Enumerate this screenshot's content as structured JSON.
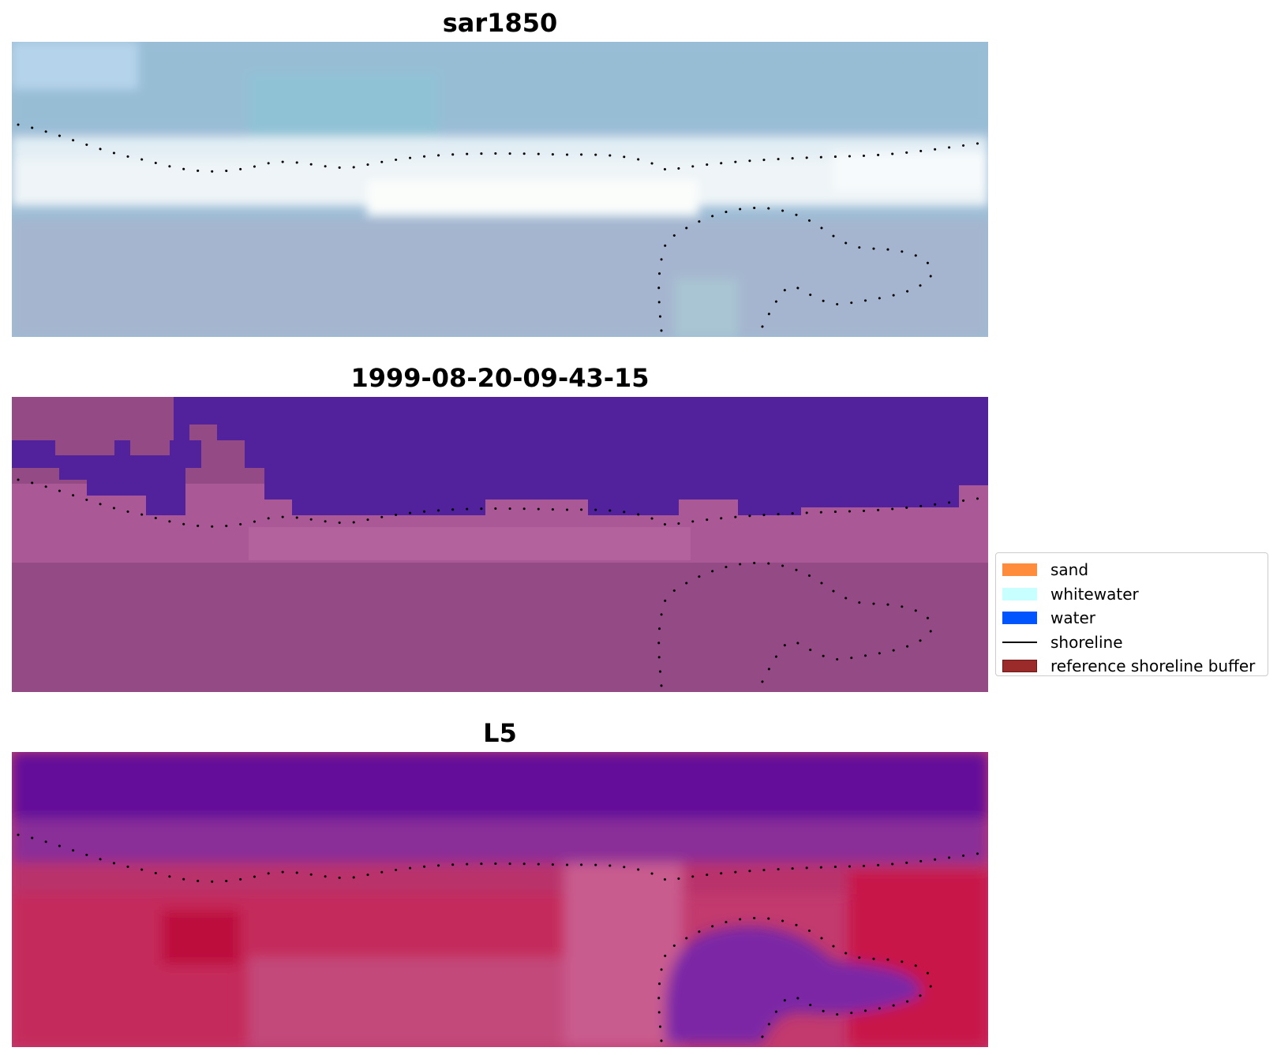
{
  "panels": [
    {
      "id": "rgb",
      "title": "sar1850"
    },
    {
      "id": "class",
      "title": "1999-08-20-09-43-15"
    },
    {
      "id": "index",
      "title": "L5"
    }
  ],
  "legend": {
    "items": [
      {
        "label": "sand",
        "kind": "patch",
        "color": "#ff8c3c"
      },
      {
        "label": "whitewater",
        "kind": "patch",
        "color": "#c8ffff"
      },
      {
        "label": "water",
        "kind": "patch",
        "color": "#0055ff"
      },
      {
        "label": "shoreline",
        "kind": "line",
        "color": "#000000"
      },
      {
        "label": "reference shoreline buffer",
        "kind": "patch",
        "color": "#9b2a2a",
        "edge": "#6b1a1a"
      }
    ]
  }
}
